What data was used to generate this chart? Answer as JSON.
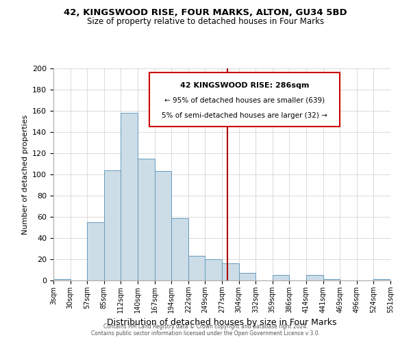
{
  "title1": "42, KINGSWOOD RISE, FOUR MARKS, ALTON, GU34 5BD",
  "title2": "Size of property relative to detached houses in Four Marks",
  "xlabel": "Distribution of detached houses by size in Four Marks",
  "ylabel": "Number of detached properties",
  "bin_labels": [
    "3sqm",
    "30sqm",
    "57sqm",
    "85sqm",
    "112sqm",
    "140sqm",
    "167sqm",
    "194sqm",
    "222sqm",
    "249sqm",
    "277sqm",
    "304sqm",
    "332sqm",
    "359sqm",
    "386sqm",
    "414sqm",
    "441sqm",
    "469sqm",
    "496sqm",
    "524sqm",
    "551sqm"
  ],
  "bar_heights": [
    1,
    0,
    55,
    104,
    158,
    115,
    103,
    59,
    23,
    20,
    16,
    7,
    0,
    5,
    0,
    5,
    1,
    0,
    0,
    1
  ],
  "bar_color": "#ccdde8",
  "bar_edge_color": "#6699bb",
  "vline_color": "#aa0000",
  "annotation_title": "42 KINGSWOOD RISE: 286sqm",
  "annotation_line1": "← 95% of detached houses are smaller (639)",
  "annotation_line2": "5% of semi-detached houses are larger (32) →",
  "ylim": [
    0,
    200
  ],
  "yticks": [
    0,
    20,
    40,
    60,
    80,
    100,
    120,
    140,
    160,
    180,
    200
  ],
  "footer1": "Contains HM Land Registry data © Crown copyright and database right 2024.",
  "footer2": "Contains public sector information licensed under the Open Government Licence v 3.0."
}
